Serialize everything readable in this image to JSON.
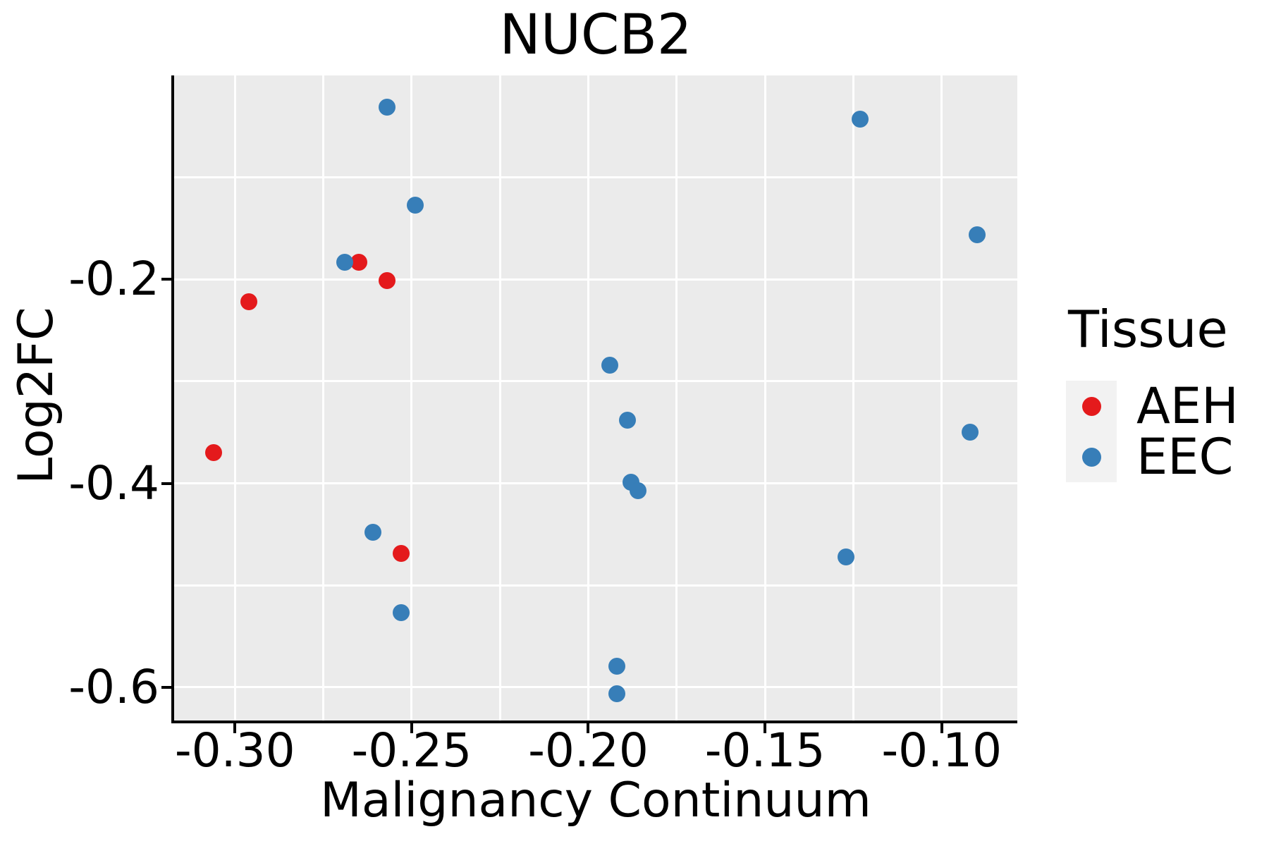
{
  "chart_data": {
    "type": "scatter",
    "title": "NUCB2",
    "xlabel": "Malignancy Continuum",
    "ylabel": "Log2FC",
    "xlim": [
      -0.3172,
      -0.0786
    ],
    "ylim": [
      -0.6325,
      0.0
    ],
    "grid": {
      "on": true,
      "color": "#FFFFFF",
      "x_values": [
        -0.3,
        -0.275,
        -0.25,
        -0.225,
        -0.2,
        -0.175,
        -0.15,
        -0.125,
        -0.1
      ],
      "y_values": [
        -0.1,
        -0.2,
        -0.3,
        -0.4,
        -0.5,
        -0.6
      ]
    },
    "x_ticks": {
      "values": [
        -0.3,
        -0.25,
        -0.2,
        -0.15,
        -0.1
      ],
      "labels": [
        "-0.30",
        "-0.25",
        "-0.20",
        "-0.15",
        "-0.10"
      ]
    },
    "y_ticks": {
      "values": [
        -0.2,
        -0.4,
        -0.6
      ],
      "labels": [
        "-0.2",
        "-0.4",
        "-0.6"
      ]
    },
    "legend_position": "right",
    "series": [
      {
        "name": "AEH",
        "color": "#E41A1C",
        "points": [
          [
            -0.296,
            -0.222
          ],
          [
            -0.265,
            -0.183
          ],
          [
            -0.257,
            -0.201
          ],
          [
            -0.306,
            -0.37
          ],
          [
            -0.253,
            -0.469
          ]
        ]
      },
      {
        "name": "EEC",
        "color": "#377EB8",
        "points": [
          [
            -0.257,
            -0.031
          ],
          [
            -0.249,
            -0.127
          ],
          [
            -0.269,
            -0.183
          ],
          [
            -0.194,
            -0.284
          ],
          [
            -0.189,
            -0.338
          ],
          [
            -0.188,
            -0.399
          ],
          [
            -0.186,
            -0.407
          ],
          [
            -0.261,
            -0.448
          ],
          [
            -0.253,
            -0.527
          ],
          [
            -0.192,
            -0.579
          ],
          [
            -0.192,
            -0.606
          ],
          [
            -0.123,
            -0.043
          ],
          [
            -0.09,
            -0.156
          ],
          [
            -0.092,
            -0.35
          ],
          [
            -0.127,
            -0.472
          ]
        ]
      }
    ]
  },
  "legend": {
    "title": "Tissue",
    "entries": [
      {
        "label": "AEH",
        "color": "#E41A1C"
      },
      {
        "label": "EEC",
        "color": "#377EB8"
      }
    ]
  },
  "colors": {
    "panel_background": "#EBEBEB",
    "legend_key_background": "#F2F2F2",
    "gridline": "#FFFFFF",
    "axis_spine": "#000000",
    "text": "#000000"
  }
}
